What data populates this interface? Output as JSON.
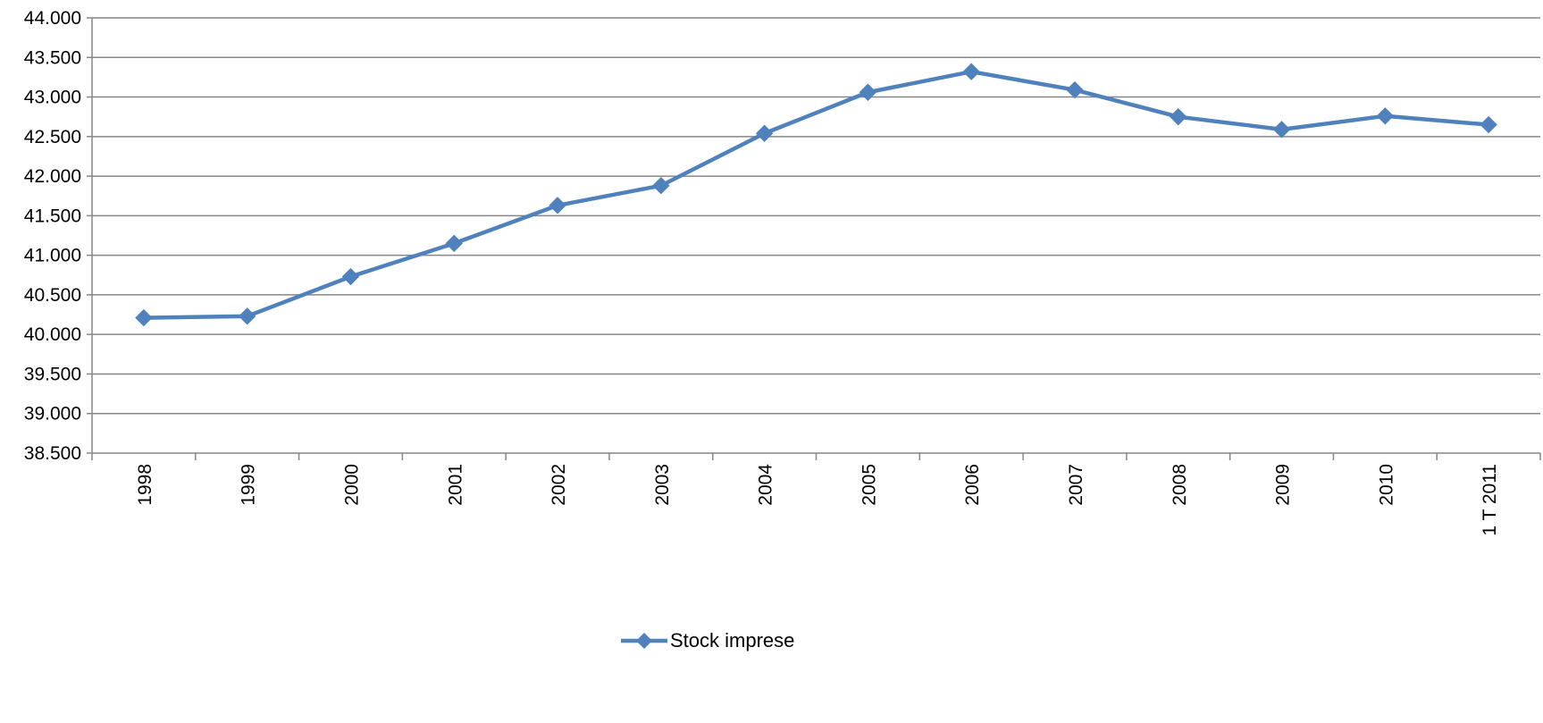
{
  "chart_data": {
    "type": "line",
    "title": "",
    "xlabel": "",
    "ylabel": "",
    "categories": [
      "1998",
      "1999",
      "2000",
      "2001",
      "2002",
      "2003",
      "2004",
      "2005",
      "2006",
      "2007",
      "2008",
      "2009",
      "2010",
      "1 T 2011"
    ],
    "series": [
      {
        "name": "Stock imprese",
        "values": [
          40210,
          40230,
          40730,
          41150,
          41630,
          41880,
          42540,
          43060,
          43320,
          43090,
          42750,
          42590,
          42760,
          42650
        ],
        "color": "#4F81BD",
        "marker": "diamond"
      }
    ],
    "ylim": [
      38500,
      44000
    ],
    "yticks": [
      38500,
      39000,
      39500,
      40000,
      40500,
      41000,
      41500,
      42000,
      42500,
      43000,
      43500,
      44000
    ],
    "ytick_labels": [
      "38.500",
      "39.000",
      "39.500",
      "40.000",
      "40.500",
      "41.000",
      "41.500",
      "42.000",
      "42.500",
      "43.000",
      "43.500",
      "44.000"
    ],
    "grid": "horizontal",
    "legend_position": "bottom-center",
    "axis_color": "#868686",
    "gridline_color": "#868686"
  }
}
